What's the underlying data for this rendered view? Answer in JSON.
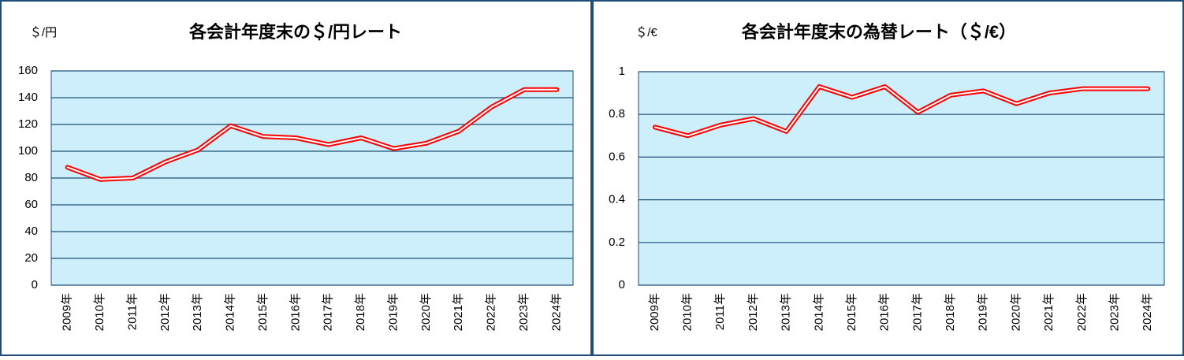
{
  "chart_data": [
    {
      "type": "line",
      "title": "各会計年度末の＄/円レート",
      "y_unit": "＄/円",
      "categories": [
        "2009年",
        "2010年",
        "2011年",
        "2012年",
        "2013年",
        "2014年",
        "2015年",
        "2016年",
        "2017年",
        "2018年",
        "2019年",
        "2020年",
        "2021年",
        "2022年",
        "2023年",
        "2024年"
      ],
      "values": [
        88,
        79,
        80,
        92,
        101,
        119,
        111,
        110,
        105,
        110,
        102,
        106,
        115,
        133,
        146,
        146
      ],
      "color": "#ff0000",
      "ylim": [
        0,
        160
      ],
      "yticks": [
        0,
        20,
        40,
        60,
        80,
        100,
        120,
        140,
        160
      ],
      "grid": true
    },
    {
      "type": "line",
      "title": "各会計年度末の為替レート（＄/€）",
      "y_unit": "＄/€",
      "categories": [
        "2009年",
        "2010年",
        "2011年",
        "2012年",
        "2013年",
        "2014年",
        "2015年",
        "2016年",
        "2017年",
        "2018年",
        "2019年",
        "2020年",
        "2021年",
        "2022年",
        "2023年",
        "2024年"
      ],
      "values": [
        0.74,
        0.7,
        0.75,
        0.78,
        0.72,
        0.93,
        0.88,
        0.93,
        0.81,
        0.89,
        0.91,
        0.85,
        0.9,
        0.92,
        0.92,
        0.92
      ],
      "color": "#ff0000",
      "ylim": [
        0,
        1
      ],
      "yticks": [
        0,
        0.2,
        0.4,
        0.6,
        0.8,
        1
      ],
      "grid": true
    }
  ]
}
